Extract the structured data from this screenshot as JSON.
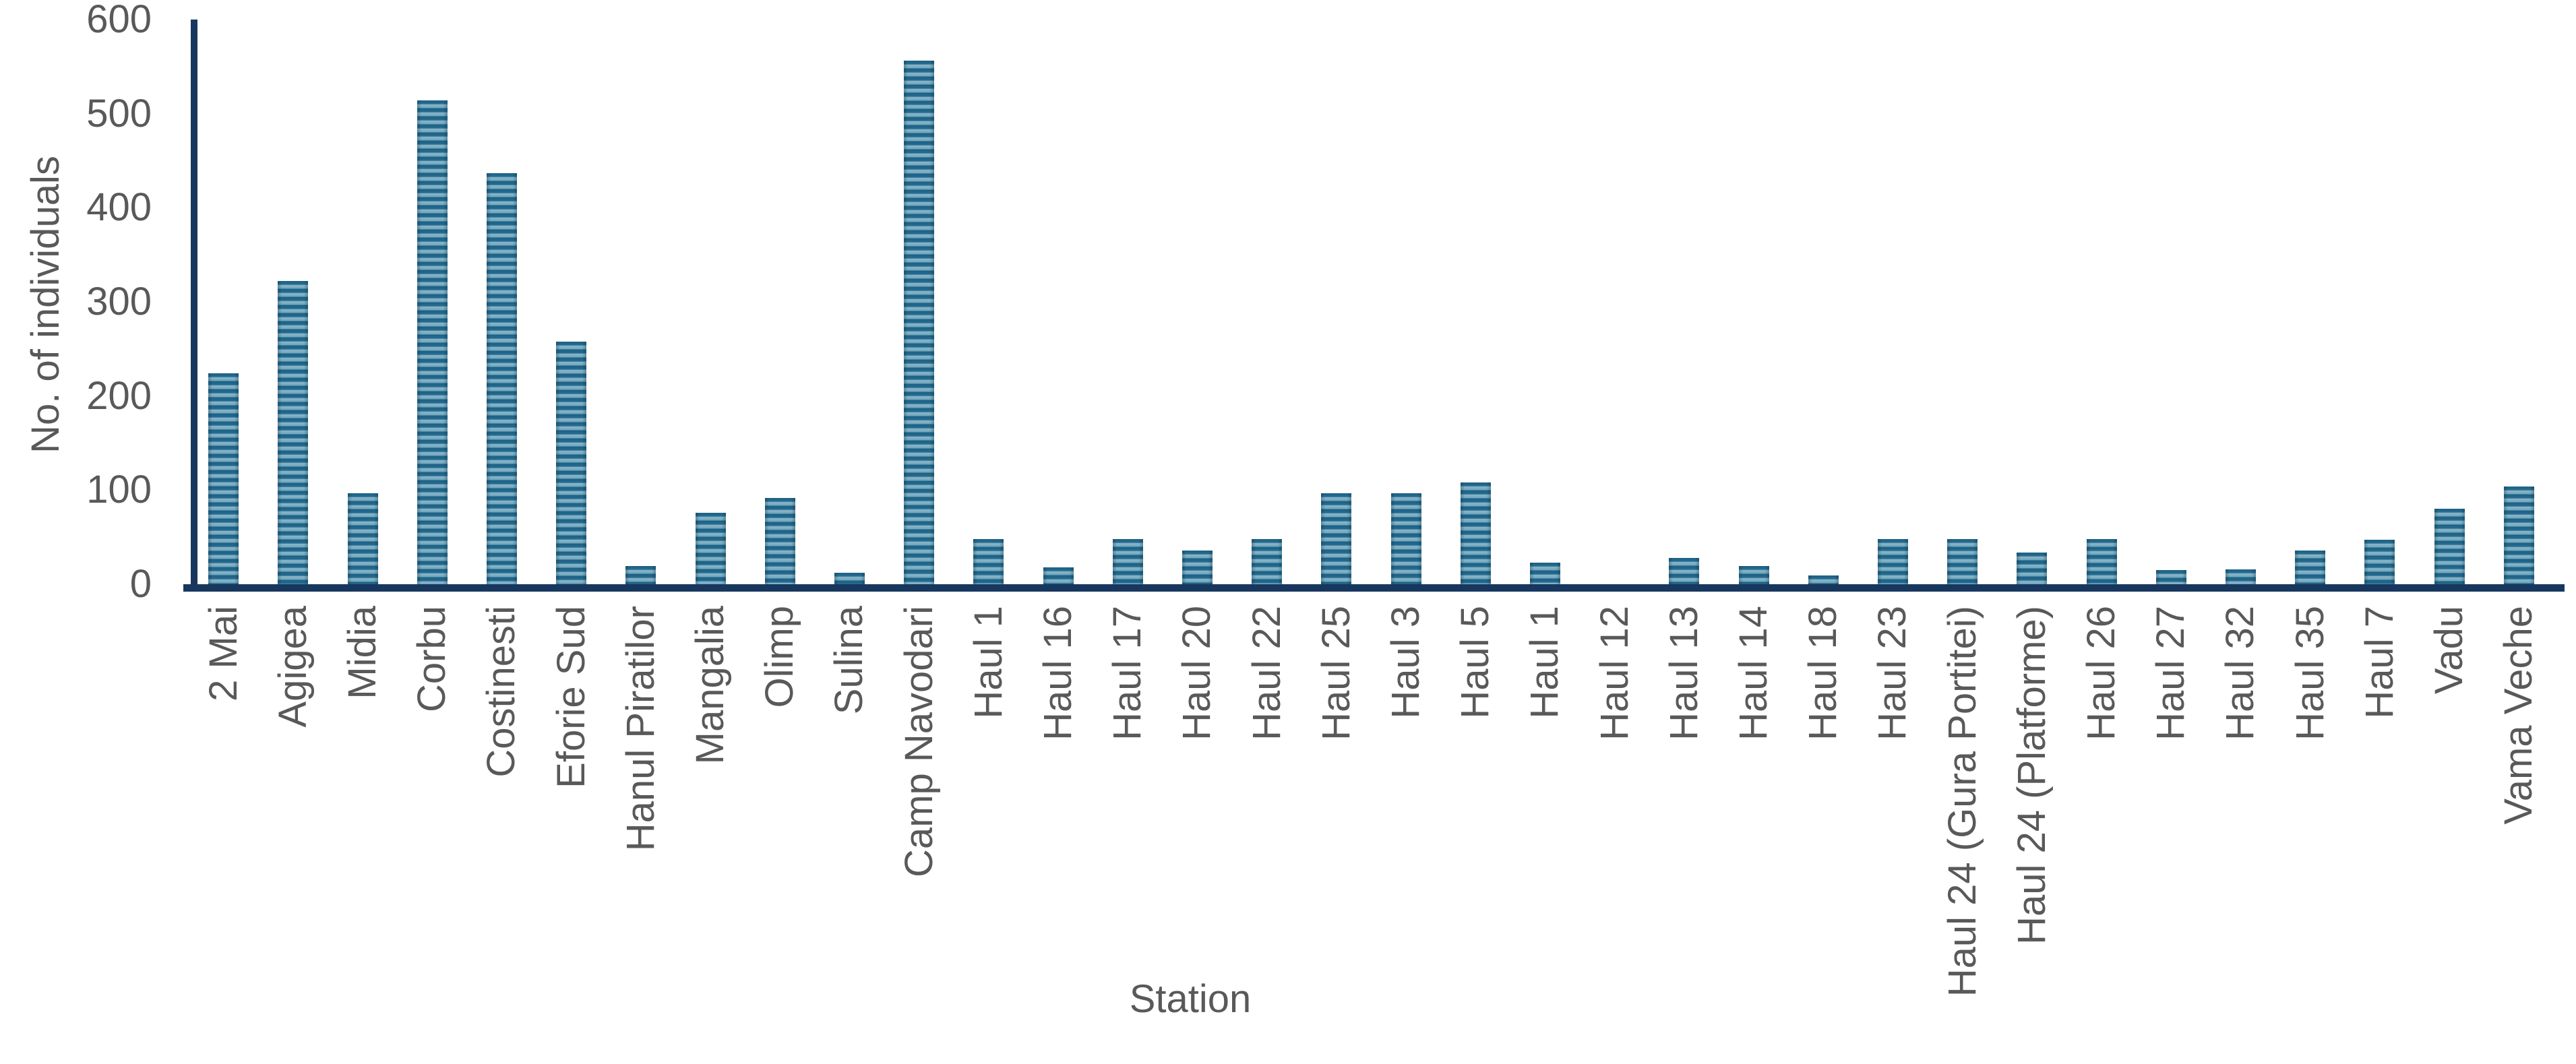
{
  "chart_data": {
    "type": "bar",
    "title": "",
    "xlabel": "Station",
    "ylabel": "No. of individuals",
    "categories": [
      "2 Mai",
      "Agigea",
      "Midia",
      "Corbu",
      "Costinesti",
      "Eforie Sud",
      "Hanul Piratilor",
      "Mangalia",
      "Olimp",
      "Sulina",
      "Camp Navodari",
      "Haul 1",
      "Haul 16",
      "Haul 17",
      "Haul 20",
      "Haul 22",
      "Haul 25",
      "Haul 3",
      "Haul 5",
      "Haul 1",
      "Haul 12",
      "Haul 13",
      "Haul 14",
      "Haul 18",
      "Haul 23",
      "Haul 24 (Gura Portitei)",
      "Haul 24 (Platforme)",
      "Haul 26",
      "Haul 27",
      "Haul 32",
      "Haul 35",
      "Haul 7",
      "Vadu",
      "Vama Veche"
    ],
    "values": [
      224,
      322,
      97,
      514,
      437,
      258,
      19,
      76,
      92,
      12,
      556,
      48,
      18,
      48,
      36,
      48,
      97,
      97,
      108,
      23,
      0,
      28,
      19,
      9,
      48,
      48,
      34,
      48,
      15,
      16,
      36,
      47,
      80,
      104
    ],
    "ylim": [
      0,
      600
    ],
    "yticks": [
      0,
      100,
      200,
      300,
      400,
      500,
      600
    ],
    "grid": false,
    "legend": "none",
    "colors": {
      "bar_stripe_dark": "#266c90",
      "bar_stripe_darker_line": "#1c6184",
      "bar_stripe_light": "#8cb7ca",
      "bar_stripe_light_shade": "#6ea5bb",
      "axis_line": "#17375E",
      "label_text": "#595959",
      "background": "#ffffff"
    }
  }
}
